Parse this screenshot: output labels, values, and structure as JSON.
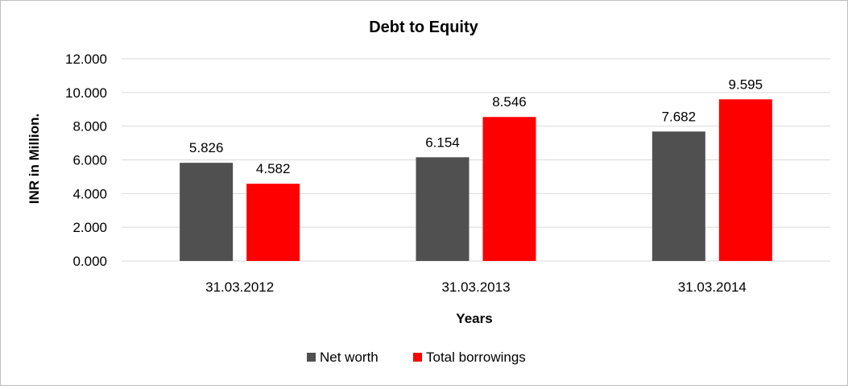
{
  "chart_data": {
    "type": "bar",
    "title": "Debt to Equity",
    "xlabel": "Years",
    "ylabel": "INR in Million.",
    "categories": [
      "31.03.2012",
      "31.03.2013",
      "31.03.2014"
    ],
    "series": [
      {
        "name": "Net worth",
        "color": "#505050",
        "values": [
          5.826,
          6.154,
          7.682
        ],
        "labels": [
          "5.826",
          "6.154",
          "7.682"
        ]
      },
      {
        "name": "Total borrowings",
        "color": "#ff0000",
        "values": [
          4.582,
          8.546,
          9.595
        ],
        "labels": [
          "4.582",
          "8.546",
          "9.595"
        ]
      }
    ],
    "ylim": [
      0,
      12
    ],
    "yticks": [
      0,
      2,
      4,
      6,
      8,
      10,
      12
    ],
    "ytick_labels": [
      "0.000",
      "2.000",
      "4.000",
      "6.000",
      "8.000",
      "10.000",
      "12.000"
    ],
    "grid": true,
    "legend_position": "bottom-center",
    "gridline_color": "#d9d9d9"
  }
}
